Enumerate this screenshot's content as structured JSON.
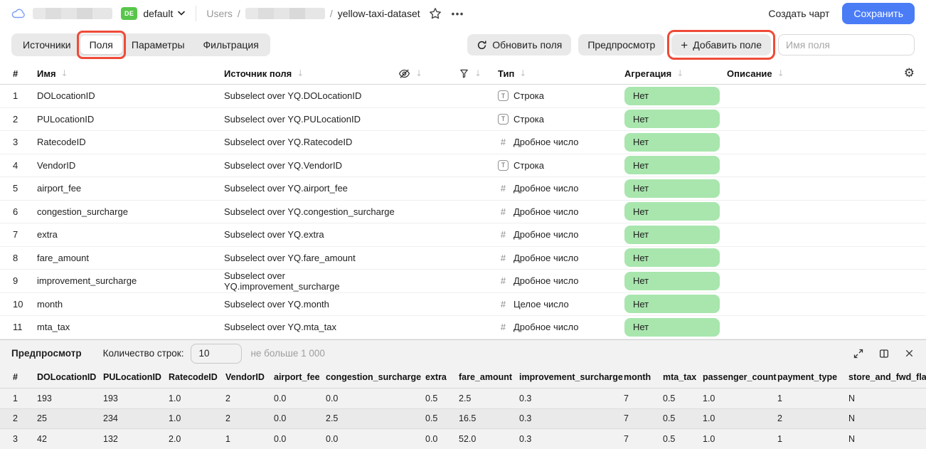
{
  "topbar": {
    "env_badge": "DE",
    "env_name": "default",
    "breadcrumb": {
      "root": "Users",
      "separator": "/",
      "dataset": "yellow-taxi-dataset"
    },
    "create_chart_label": "Создать чарт",
    "save_label": "Сохранить"
  },
  "tabs": {
    "items": [
      {
        "label": "Источники",
        "active": false
      },
      {
        "label": "Поля",
        "active": true
      },
      {
        "label": "Параметры",
        "active": false
      },
      {
        "label": "Фильтрация",
        "active": false
      }
    ]
  },
  "toolbar": {
    "refresh_label": "Обновить поля",
    "preview_label": "Предпросмотр",
    "add_field_label": "Добавить поле",
    "field_name_placeholder": "Имя поля"
  },
  "fields_table": {
    "headers": {
      "num": "#",
      "name": "Имя",
      "source": "Источник поля",
      "type": "Тип",
      "aggregation": "Агрегация",
      "description": "Описание"
    },
    "rows": [
      {
        "num": "1",
        "name": "DOLocationID",
        "source": "Subselect over YQ.DOLocationID",
        "type_kind": "string",
        "type": "Строка",
        "aggregation": "Нет",
        "description": ""
      },
      {
        "num": "2",
        "name": "PULocationID",
        "source": "Subselect over YQ.PULocationID",
        "type_kind": "string",
        "type": "Строка",
        "aggregation": "Нет",
        "description": ""
      },
      {
        "num": "3",
        "name": "RatecodeID",
        "source": "Subselect over YQ.RatecodeID",
        "type_kind": "number",
        "type": "Дробное число",
        "aggregation": "Нет",
        "description": ""
      },
      {
        "num": "4",
        "name": "VendorID",
        "source": "Subselect over YQ.VendorID",
        "type_kind": "string",
        "type": "Строка",
        "aggregation": "Нет",
        "description": ""
      },
      {
        "num": "5",
        "name": "airport_fee",
        "source": "Subselect over YQ.airport_fee",
        "type_kind": "number",
        "type": "Дробное число",
        "aggregation": "Нет",
        "description": ""
      },
      {
        "num": "6",
        "name": "congestion_surcharge",
        "source": "Subselect over YQ.congestion_surcharge",
        "type_kind": "number",
        "type": "Дробное число",
        "aggregation": "Нет",
        "description": ""
      },
      {
        "num": "7",
        "name": "extra",
        "source": "Subselect over YQ.extra",
        "type_kind": "number",
        "type": "Дробное число",
        "aggregation": "Нет",
        "description": ""
      },
      {
        "num": "8",
        "name": "fare_amount",
        "source": "Subselect over YQ.fare_amount",
        "type_kind": "number",
        "type": "Дробное число",
        "aggregation": "Нет",
        "description": ""
      },
      {
        "num": "9",
        "name": "improvement_surcharge",
        "source": "Subselect over YQ.improvement_surcharge",
        "type_kind": "number",
        "type": "Дробное число",
        "aggregation": "Нет",
        "description": ""
      },
      {
        "num": "10",
        "name": "month",
        "source": "Subselect over YQ.month",
        "type_kind": "integer",
        "type": "Целое число",
        "aggregation": "Нет",
        "description": ""
      },
      {
        "num": "11",
        "name": "mta_tax",
        "source": "Subselect over YQ.mta_tax",
        "type_kind": "number",
        "type": "Дробное число",
        "aggregation": "Нет",
        "description": ""
      }
    ],
    "type_icon_glyphs": {
      "string": "T",
      "number": "#",
      "integer": "#"
    }
  },
  "preview": {
    "title": "Предпросмотр",
    "row_count_label": "Количество строк:",
    "row_count_value": "10",
    "row_count_hint": "не больше 1 000",
    "table": {
      "headers": [
        "#",
        "DOLocationID",
        "PULocationID",
        "RatecodeID",
        "VendorID",
        "airport_fee",
        "congestion_surcharge",
        "extra",
        "fare_amount",
        "improvement_surcharge",
        "month",
        "mta_tax",
        "passenger_count",
        "payment_type",
        "store_and_fwd_flag"
      ],
      "rows": [
        [
          "1",
          "193",
          "193",
          "1.0",
          "2",
          "0.0",
          "0.0",
          "0.5",
          "2.5",
          "0.3",
          "7",
          "0.5",
          "1.0",
          "1",
          "N"
        ],
        [
          "2",
          "25",
          "234",
          "1.0",
          "2",
          "0.0",
          "2.5",
          "0.5",
          "16.5",
          "0.3",
          "7",
          "0.5",
          "1.0",
          "2",
          "N"
        ],
        [
          "3",
          "42",
          "132",
          "2.0",
          "1",
          "0.0",
          "0.0",
          "0.0",
          "52.0",
          "0.3",
          "7",
          "0.5",
          "1.0",
          "1",
          "N"
        ]
      ]
    }
  },
  "colors": {
    "primary_button": "#4a7cf6",
    "env_badge_green": "#58c64b",
    "aggregation_pill_green": "#a8e6ad",
    "annotation_red": "#ee4b38",
    "panel_gray": "#f2f2f2"
  }
}
